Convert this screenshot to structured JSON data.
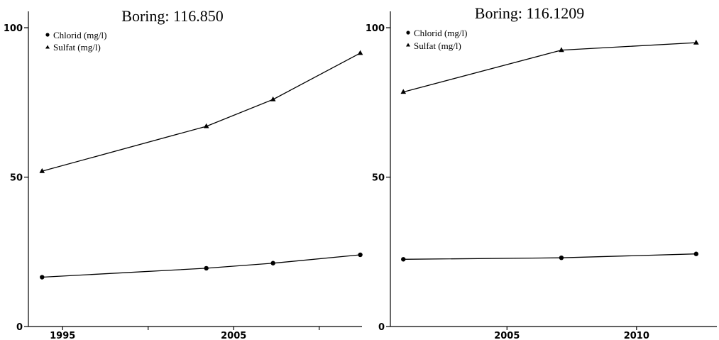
{
  "chart_data": [
    {
      "type": "line",
      "title": "Boring: 116.850",
      "xlabel": "",
      "ylabel": "",
      "xlim": [
        1993,
        2012.5
      ],
      "ylim": [
        0,
        105
      ],
      "x_ticks": [
        1995,
        2000,
        2005,
        2010
      ],
      "x_tick_labels": [
        "1995",
        "",
        "2005",
        ""
      ],
      "y_ticks": [
        0,
        50,
        100
      ],
      "y_tick_labels": [
        "0",
        "50",
        "100"
      ],
      "grid": false,
      "legend_position": "top-left",
      "series": [
        {
          "name": "Chlorid (mg/l)",
          "marker": "circle",
          "x": [
            1993.8,
            2003.4,
            2007.3,
            2012.4
          ],
          "y": [
            16.5,
            19.5,
            21.2,
            24.0
          ]
        },
        {
          "name": "Sulfat (mg/l)",
          "marker": "triangle",
          "x": [
            1993.8,
            2003.4,
            2007.3,
            2012.4
          ],
          "y": [
            52.0,
            67.0,
            76.0,
            91.5
          ]
        }
      ]
    },
    {
      "type": "line",
      "title": "Boring: 116.1209",
      "xlabel": "",
      "ylabel": "",
      "xlim": [
        2000.5,
        2013.1
      ],
      "ylim": [
        0,
        105
      ],
      "x_ticks": [
        2005,
        2010
      ],
      "x_tick_labels": [
        "2005",
        "2010"
      ],
      "y_ticks": [
        0,
        50,
        100
      ],
      "y_tick_labels": [
        "0",
        "50",
        "100"
      ],
      "grid": false,
      "legend_position": "top-left",
      "series": [
        {
          "name": "Chlorid (mg/l)",
          "marker": "circle",
          "x": [
            2001.0,
            2007.1,
            2012.3
          ],
          "y": [
            22.5,
            23.0,
            24.3
          ]
        },
        {
          "name": "Sulfat (mg/l)",
          "marker": "triangle",
          "x": [
            2001.0,
            2007.1,
            2012.3
          ],
          "y": [
            78.5,
            92.5,
            95.0
          ]
        }
      ]
    }
  ]
}
